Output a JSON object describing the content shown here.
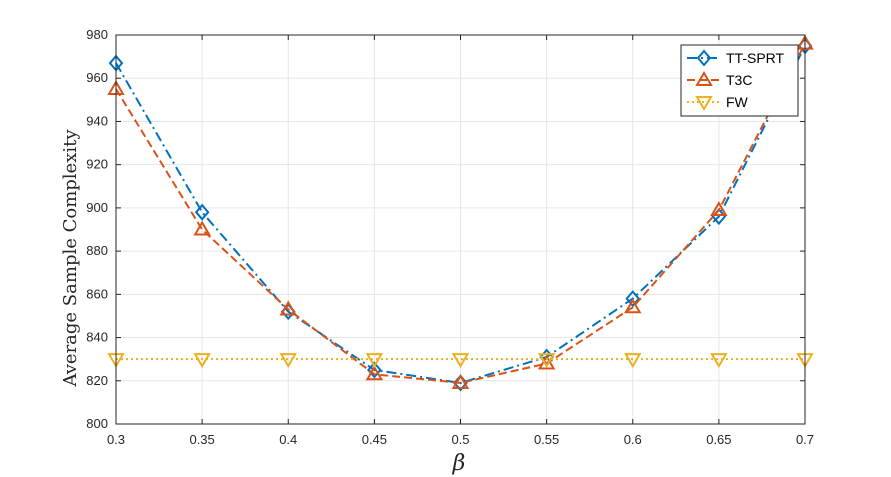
{
  "chart_data": {
    "type": "line",
    "title": "",
    "xlabel": "β",
    "ylabel": "Average Sample Complexity",
    "x": [
      0.3,
      0.35,
      0.4,
      0.45,
      0.5,
      0.55,
      0.6,
      0.65,
      0.7
    ],
    "xlim": [
      0.3,
      0.7
    ],
    "ylim": [
      800,
      980
    ],
    "xticks": [
      "0.3",
      "0.35",
      "0.4",
      "0.45",
      "0.5",
      "0.55",
      "0.6",
      "0.65",
      "0.7"
    ],
    "yticks": [
      "800",
      "820",
      "840",
      "860",
      "880",
      "900",
      "920",
      "940",
      "960",
      "980"
    ],
    "grid": true,
    "legend_position": "top-right",
    "series": [
      {
        "name": "TT-SPRT",
        "color": "#0072BD",
        "line_style": "dash-dot",
        "marker": "diamond",
        "values": [
          967,
          898,
          852,
          825,
          819,
          831,
          858,
          896,
          975
        ]
      },
      {
        "name": "T3C",
        "color": "#D95319",
        "line_style": "dashed",
        "marker": "triangle-up",
        "values": [
          955,
          890,
          853,
          823,
          819,
          828,
          854,
          899,
          976
        ]
      },
      {
        "name": "FW",
        "color": "#EDB120",
        "line_style": "dotted",
        "marker": "triangle-down",
        "values": [
          830,
          830,
          830,
          830,
          830,
          830,
          830,
          830,
          830
        ]
      }
    ]
  }
}
